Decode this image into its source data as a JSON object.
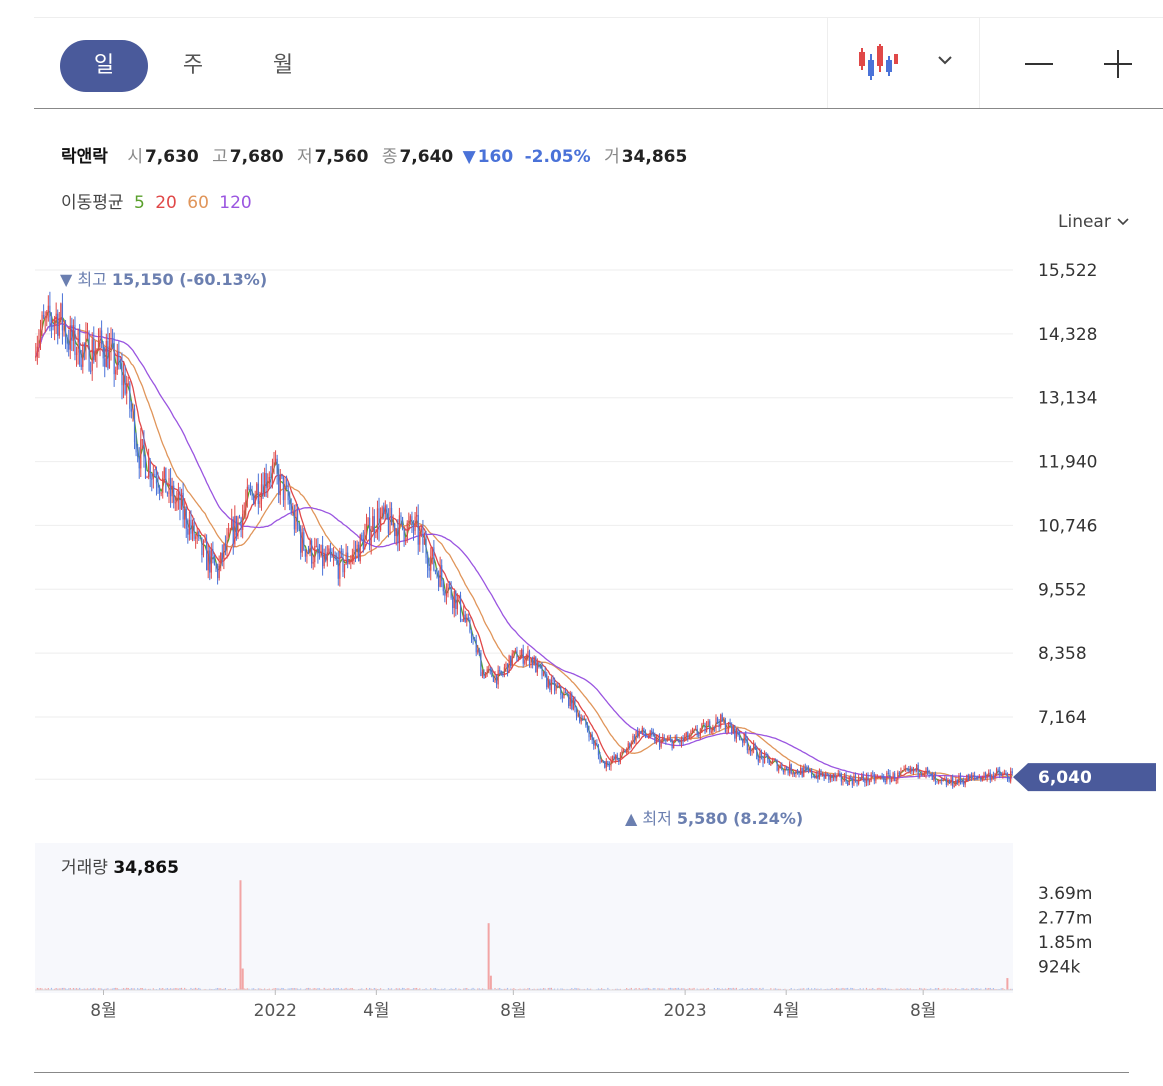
{
  "toolbar": {
    "tabs": [
      {
        "label": "일",
        "active": true
      },
      {
        "label": "주",
        "active": false
      },
      {
        "label": "월",
        "active": false
      }
    ],
    "chart_type_icon": "candlestick-icon",
    "dropdown_icon": "chevron-down-icon",
    "zoom_out_icon": "minus-icon",
    "zoom_in_icon": "plus-icon"
  },
  "quote": {
    "name": "락앤락",
    "open_label": "시",
    "open": "7,630",
    "high_label": "고",
    "high": "7,680",
    "low_label": "저",
    "low": "7,560",
    "close_label": "종",
    "close": "7,640",
    "change_arrow": "▼",
    "change": "160",
    "change_pct": "-2.05%",
    "volume_label": "거",
    "volume": "34,865"
  },
  "moving_average": {
    "label": "이동평균",
    "periods": [
      {
        "value": "5",
        "color": "#5aa02c"
      },
      {
        "value": "20",
        "color": "#e04848"
      },
      {
        "value": "60",
        "color": "#e0955a"
      },
      {
        "value": "120",
        "color": "#9a55e0"
      }
    ]
  },
  "scale_selector": "Linear",
  "colors": {
    "accent": "#4a5a9b",
    "up": "#e04848",
    "down": "#4a72d8",
    "annotation": "#6b7fb0",
    "grid": "#eeeeee"
  },
  "chart_data": {
    "type": "candlestick",
    "y_axis_ticks": [
      "15,522",
      "14,328",
      "13,134",
      "11,940",
      "10,746",
      "9,552",
      "8,358",
      "7,164"
    ],
    "ylim": [
      6000,
      15522
    ],
    "current_price_label": "6,040",
    "current_price": 6040,
    "high_annotation": {
      "arrow": "▼",
      "label": "최고",
      "value": "15,150",
      "pct": "(-60.13%)"
    },
    "low_annotation": {
      "arrow": "▲",
      "label": "최저",
      "value": "5,580",
      "pct": "(8.24%)"
    },
    "x_axis_ticks": [
      "8월",
      "2022",
      "4월",
      "8월",
      "2023",
      "4월",
      "8월"
    ],
    "close_path": [
      {
        "d": "2021-06-01",
        "p": 14300
      },
      {
        "d": "2021-06-20",
        "p": 14700
      },
      {
        "d": "2021-07-01",
        "p": 14200
      },
      {
        "d": "2021-07-15",
        "p": 14000
      },
      {
        "d": "2021-08-01",
        "p": 14100
      },
      {
        "d": "2021-08-20",
        "p": 13400
      },
      {
        "d": "2021-09-01",
        "p": 12100
      },
      {
        "d": "2021-09-20",
        "p": 11600
      },
      {
        "d": "2021-10-10",
        "p": 11000
      },
      {
        "d": "2021-10-25",
        "p": 10300
      },
      {
        "d": "2021-11-10",
        "p": 9900
      },
      {
        "d": "2021-11-25",
        "p": 10700
      },
      {
        "d": "2021-12-10",
        "p": 11300
      },
      {
        "d": "2021-12-28",
        "p": 11800
      },
      {
        "d": "2022-01-10",
        "p": 11300
      },
      {
        "d": "2022-01-25",
        "p": 10400
      },
      {
        "d": "2022-02-10",
        "p": 10100
      },
      {
        "d": "2022-02-28",
        "p": 10000
      },
      {
        "d": "2022-03-15",
        "p": 10300
      },
      {
        "d": "2022-04-01",
        "p": 10900
      },
      {
        "d": "2022-04-20",
        "p": 10700
      },
      {
        "d": "2022-05-05",
        "p": 10700
      },
      {
        "d": "2022-05-25",
        "p": 9900
      },
      {
        "d": "2022-06-10",
        "p": 9400
      },
      {
        "d": "2022-06-25",
        "p": 8700
      },
      {
        "d": "2022-07-05",
        "p": 8000
      },
      {
        "d": "2022-07-20",
        "p": 7900
      },
      {
        "d": "2022-08-01",
        "p": 8300
      },
      {
        "d": "2022-08-15",
        "p": 8300
      },
      {
        "d": "2022-09-01",
        "p": 7800
      },
      {
        "d": "2022-09-20",
        "p": 7500
      },
      {
        "d": "2022-10-05",
        "p": 7000
      },
      {
        "d": "2022-10-20",
        "p": 6300
      },
      {
        "d": "2022-11-05",
        "p": 6400
      },
      {
        "d": "2022-11-20",
        "p": 6900
      },
      {
        "d": "2022-12-10",
        "p": 6700
      },
      {
        "d": "2022-12-28",
        "p": 6700
      },
      {
        "d": "2023-01-15",
        "p": 6900
      },
      {
        "d": "2023-02-01",
        "p": 7100
      },
      {
        "d": "2023-02-20",
        "p": 6800
      },
      {
        "d": "2023-03-10",
        "p": 6400
      },
      {
        "d": "2023-04-01",
        "p": 6200
      },
      {
        "d": "2023-04-25",
        "p": 6100
      },
      {
        "d": "2023-05-20",
        "p": 6000
      },
      {
        "d": "2023-06-15",
        "p": 6000
      },
      {
        "d": "2023-07-10",
        "p": 6050
      },
      {
        "d": "2023-08-01",
        "p": 6200
      },
      {
        "d": "2023-08-15",
        "p": 5900
      },
      {
        "d": "2023-09-10",
        "p": 6000
      },
      {
        "d": "2023-10-05",
        "p": 6100
      },
      {
        "d": "2023-10-20",
        "p": 6040
      }
    ],
    "moving_average_series": [
      {
        "period": "5",
        "color": "#5aa02c",
        "smooth": 3
      },
      {
        "period": "20",
        "color": "#e04848",
        "smooth": 10
      },
      {
        "period": "60",
        "color": "#e0955a",
        "smooth": 28
      },
      {
        "period": "120",
        "color": "#9a55e0",
        "smooth": 55
      }
    ],
    "volume": {
      "label": "거래량",
      "value": "34,865",
      "y_axis_ticks": [
        "3.69m",
        "2.77m",
        "1.85m",
        "924k"
      ],
      "ymax": 4610000,
      "spikes": [
        {
          "d": "2021-12-01",
          "v": 4600000
        },
        {
          "d": "2021-12-03",
          "v": 900000
        },
        {
          "d": "2022-07-10",
          "v": 2800000
        },
        {
          "d": "2022-07-12",
          "v": 600000
        },
        {
          "d": "2023-10-15",
          "v": 500000
        }
      ]
    }
  }
}
